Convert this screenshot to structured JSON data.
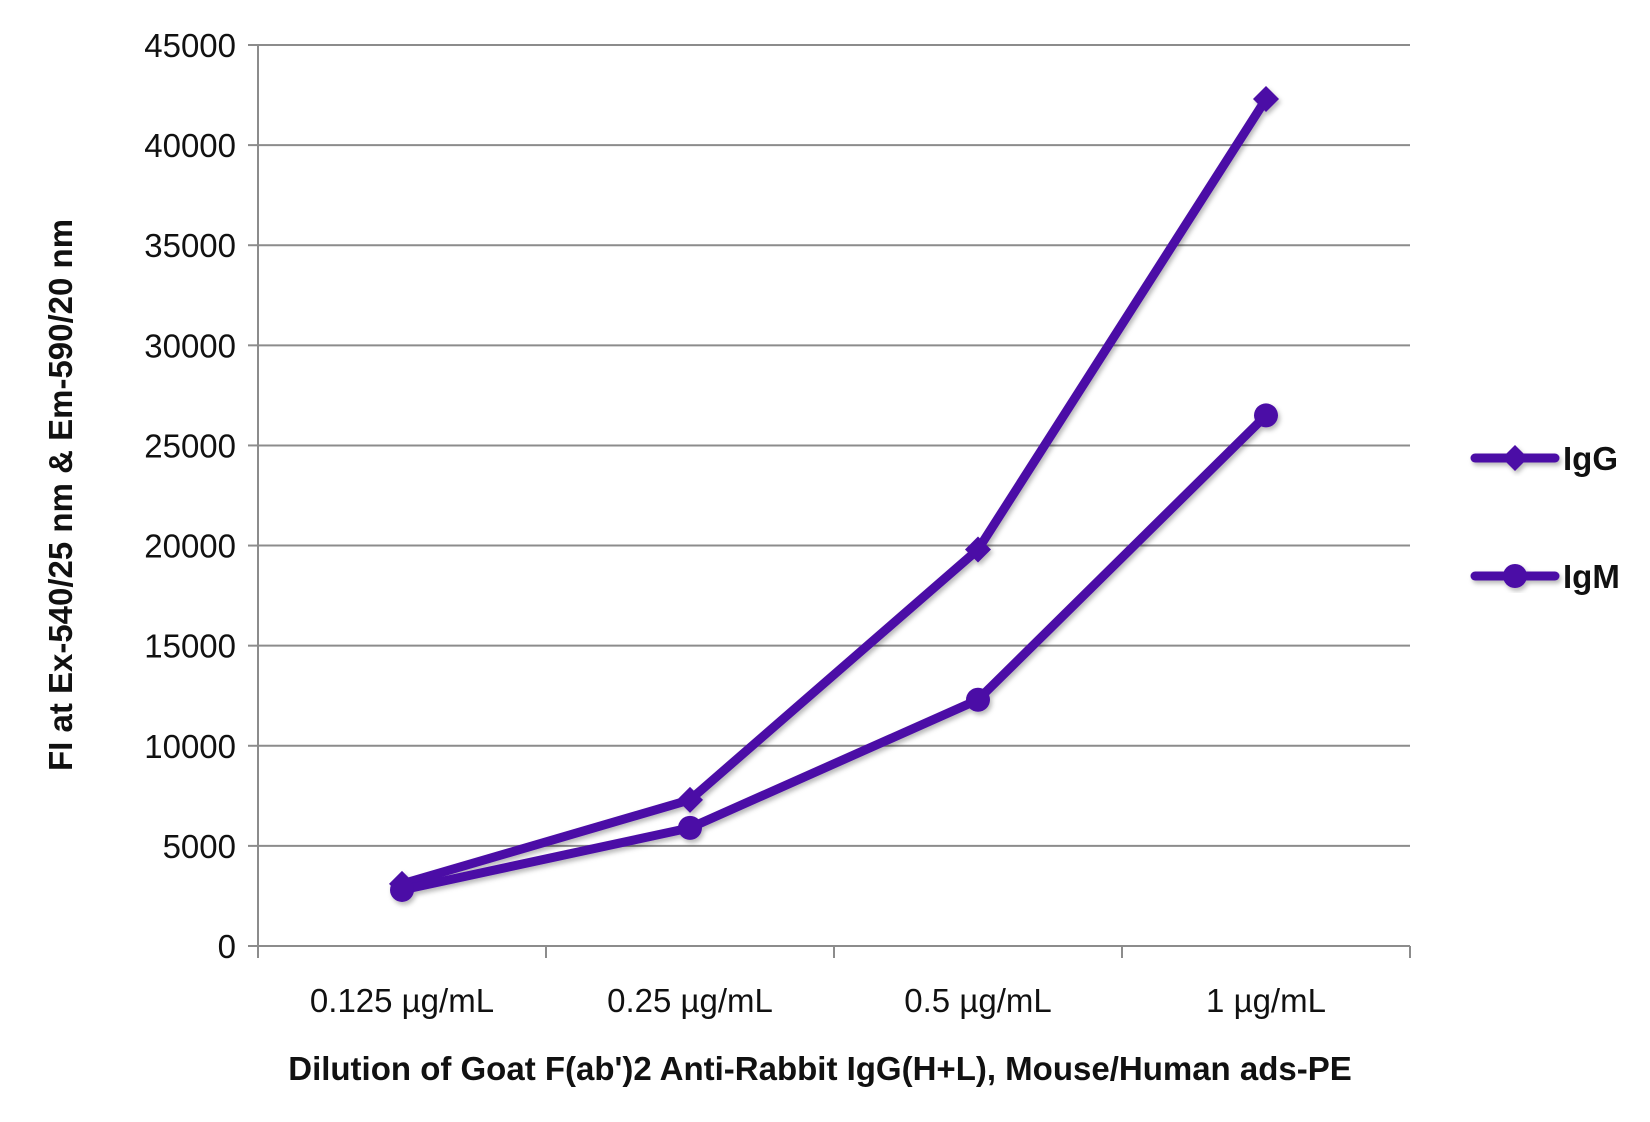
{
  "chart_data": {
    "type": "line",
    "title": "",
    "xlabel": "Dilution of Goat F(ab')2 Anti-Rabbit IgG(H+L), Mouse/Human ads-PE",
    "ylabel": "FI at Ex-540/25 nm & Em-590/20 nm",
    "categories": [
      "0.125 µg/mL",
      "0.25 µg/mL",
      "0.5 µg/mL",
      "1 µg/mL"
    ],
    "ylim": [
      0,
      45000
    ],
    "yticks": [
      "0",
      "5000",
      "10000",
      "15000",
      "20000",
      "25000",
      "30000",
      "35000",
      "40000",
      "45000"
    ],
    "grid": "horizontal",
    "legend_position": "right",
    "series": [
      {
        "name": "IgG",
        "marker": "diamond",
        "color": "#4b0ca6",
        "values": [
          3100,
          7300,
          19800,
          42300
        ]
      },
      {
        "name": "IgM",
        "marker": "circle",
        "color": "#4b0ca6",
        "values": [
          2800,
          5900,
          12300,
          26500
        ]
      }
    ]
  }
}
